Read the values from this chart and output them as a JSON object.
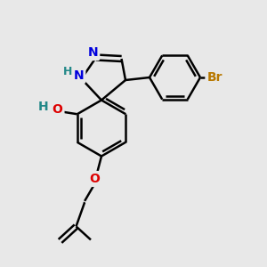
{
  "bg_color": "#e8e8e8",
  "bond_color": "#000000",
  "bond_width": 1.8,
  "atom_colors": {
    "N": "#0000dd",
    "O": "#dd0000",
    "Br": "#b87800",
    "NH": "#228888",
    "C": "#000000"
  },
  "font_size_atom": 10,
  "font_size_h": 9
}
